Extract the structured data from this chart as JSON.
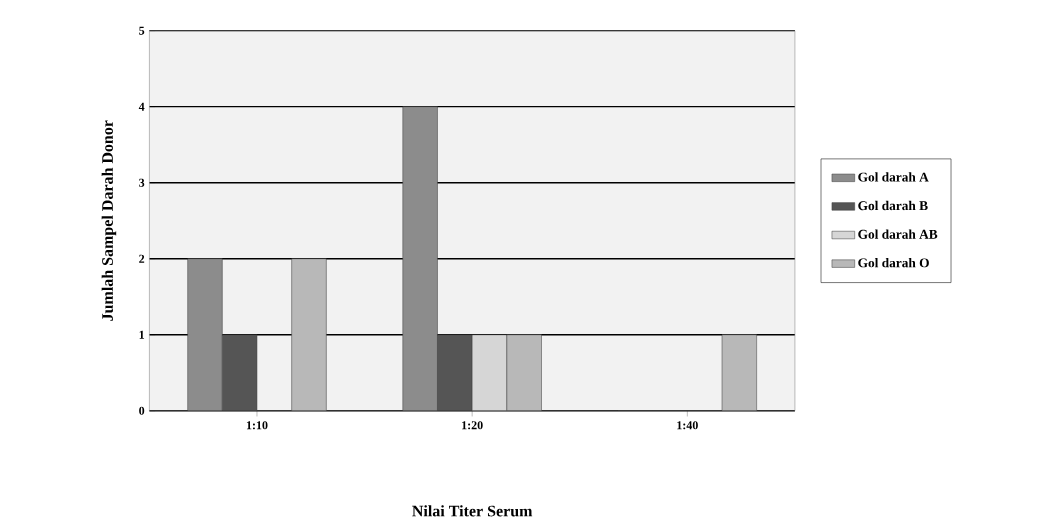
{
  "chart_data": {
    "type": "bar",
    "xlabel": "Nilai Titer Serum",
    "ylabel": "Jumlah Sampel  Darah Donor",
    "categories": [
      "1:10",
      "1:20",
      "1:40"
    ],
    "series": [
      {
        "name": "Gol darah A",
        "color": "#8c8c8c",
        "values": [
          2,
          4,
          0
        ]
      },
      {
        "name": "Gol darah B",
        "color": "#555555",
        "values": [
          1,
          1,
          0
        ]
      },
      {
        "name": "Gol darah AB",
        "color": "#d6d6d6",
        "values": [
          0,
          1,
          0
        ]
      },
      {
        "name": "Gol darah O",
        "color": "#b8b8b8",
        "values": [
          2,
          1,
          1
        ]
      }
    ],
    "ylim": [
      0,
      5
    ],
    "yticks": [
      0,
      1,
      2,
      3,
      4,
      5
    ],
    "grid": "y",
    "legend": "right"
  }
}
